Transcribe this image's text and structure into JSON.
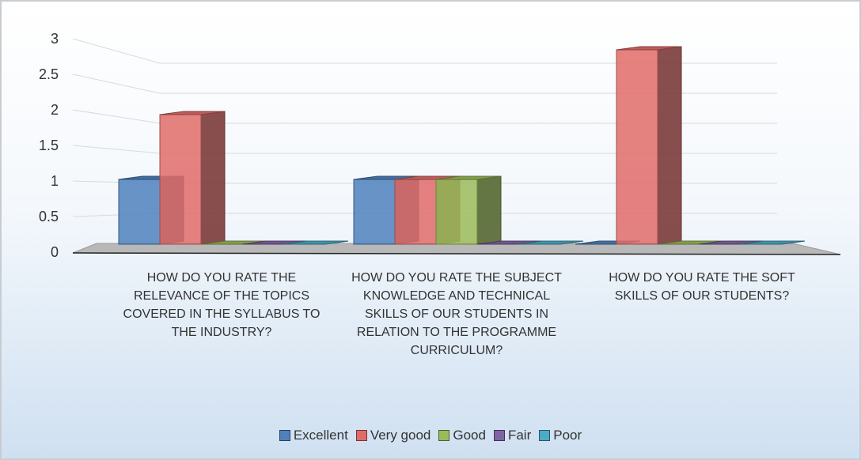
{
  "chart_data": {
    "type": "bar3d",
    "categories": [
      "HOW DO YOU RATE THE RELEVANCE OF THE TOPICS COVERED IN THE SYLLABUS TO THE INDUSTRY?",
      "HOW DO YOU RATE THE SUBJECT KNOWLEDGE AND TECHNICAL SKILLS OF OUR STUDENTS IN RELATION TO THE PROGRAMME CURRICULUM?",
      "HOW DO YOU RATE THE SOFT  SKILLS OF OUR STUDENTS?"
    ],
    "series": [
      {
        "name": "Excellent",
        "color": "#4f81bd",
        "values": [
          1,
          1,
          0
        ]
      },
      {
        "name": "Very good",
        "color": "#e06c6a",
        "values": [
          2,
          1,
          3
        ]
      },
      {
        "name": "Good",
        "color": "#9bbb59",
        "values": [
          0,
          1,
          0
        ]
      },
      {
        "name": "Fair",
        "color": "#8064a2",
        "values": [
          0,
          0,
          0
        ]
      },
      {
        "name": "Poor",
        "color": "#4bacc6",
        "values": [
          0,
          0,
          0
        ]
      }
    ],
    "ylim": [
      0,
      3
    ],
    "yticks": [
      0,
      0.5,
      1,
      1.5,
      2,
      2.5,
      3
    ],
    "grid": true,
    "legend": "bottom"
  }
}
